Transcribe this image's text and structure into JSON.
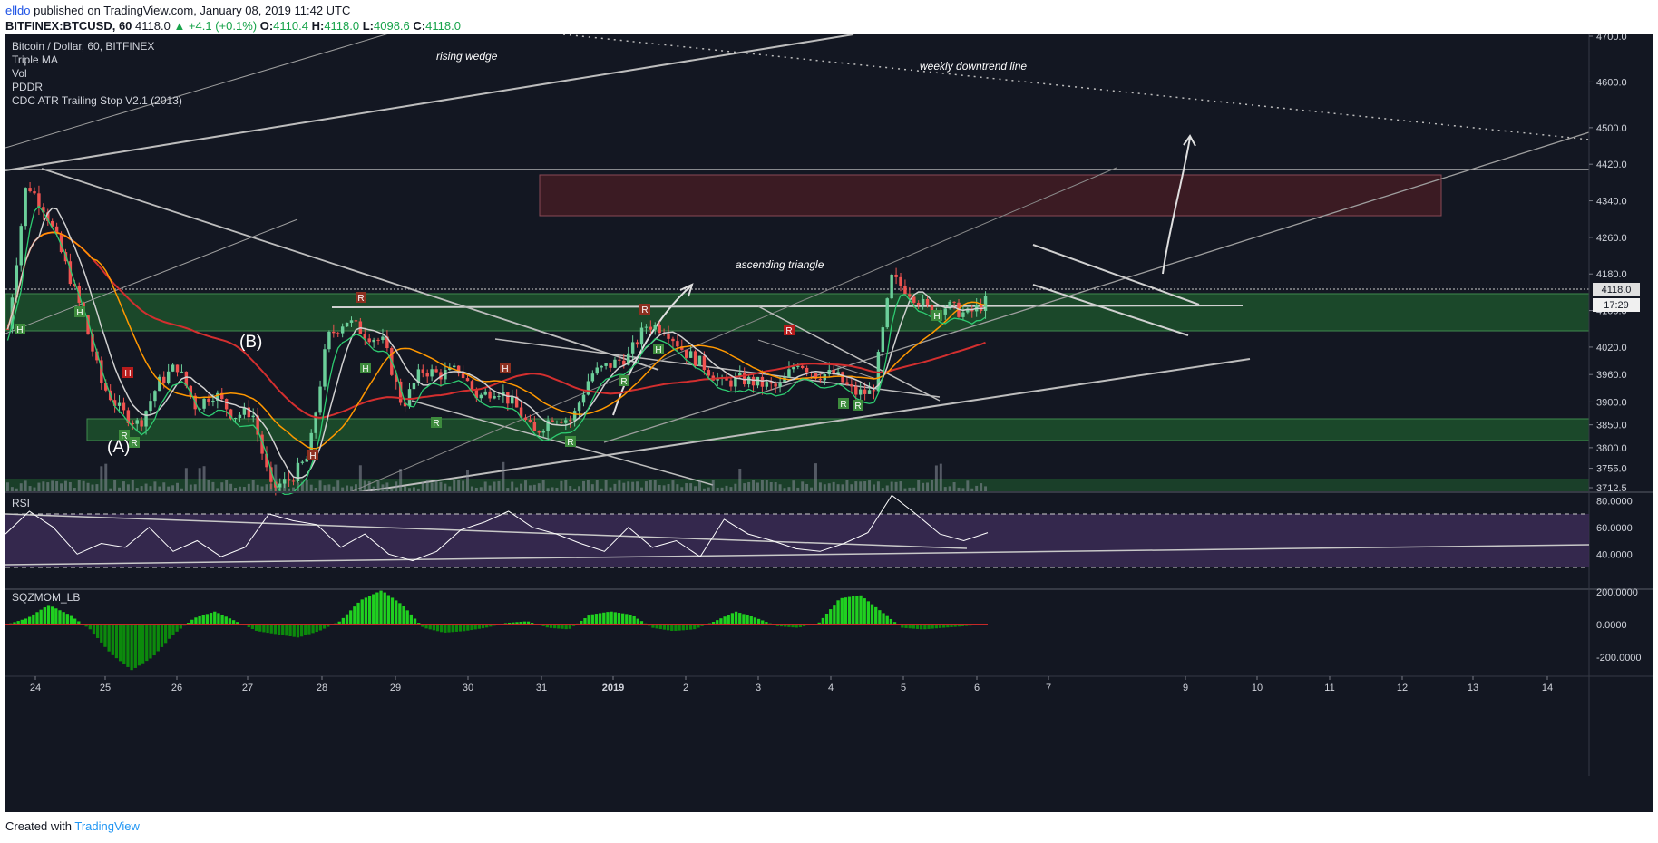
{
  "header": {
    "user": "elldo",
    "published": "published on TradingView.com, January 08, 2019 11:42 UTC",
    "symbol": "BITFINEX:BTCUSD, 60",
    "last": "4118.0",
    "change": "▲ +4.1 (+0.1%)",
    "o_label": "O:",
    "o": "4110.4",
    "h_label": "H:",
    "h": "4118.0",
    "l_label": "L:",
    "l": "4098.6",
    "c_label": "C:",
    "c": "4118.0"
  },
  "legend": {
    "title": "Bitcoin / Dollar, 60, BITFINEX",
    "ind1": "Triple MA",
    "ind2": "Vol",
    "ind3": "PDDR",
    "ind4": "CDC ATR Trailing Stop V2.1 (2013)"
  },
  "annotations": {
    "rising_wedge": "rising wedge",
    "weekly_downtrend": "weekly downtrend line",
    "ascending_triangle": "ascending triangle",
    "wave_a": "(A)",
    "wave_b": "(B)"
  },
  "price_badge": "4118.0",
  "time_badge": "17:29",
  "rsi_title": "RSI",
  "sqz_title": "SQZMOM_LB",
  "footer": {
    "created": "Created with",
    "brand": "TradingView"
  },
  "colors": {
    "bg": "#131722",
    "up": "#6bcf9a",
    "down": "#ef5350",
    "zone_green": "#1f5a2e",
    "zone_red": "#4a1d24",
    "rsi_band": "#3b2b55",
    "text": "#d1d4dc"
  },
  "chart_data": [
    {
      "type": "candlestick",
      "title": "Bitcoin / Dollar, 60, BITFINEX",
      "x_ticks": [
        "24",
        "25",
        "26",
        "27",
        "28",
        "29",
        "30",
        "31",
        "2019",
        "2",
        "3",
        "4",
        "5",
        "6",
        "7",
        "9",
        "10",
        "11",
        "12",
        "13",
        "14"
      ],
      "y_ticks": [
        3712.5,
        3755,
        3800,
        3850,
        3900,
        3960,
        4020,
        4100,
        4180,
        4260,
        4340,
        4420,
        4500,
        4600,
        4700
      ],
      "ylim": [
        3700,
        4700
      ],
      "close_path": [
        4060,
        4380,
        4320,
        4210,
        4090,
        3940,
        3880,
        3850,
        3940,
        3980,
        3890,
        3920,
        3870,
        3880,
        3710,
        3730,
        3780,
        4040,
        4080,
        4050,
        4030,
        3890,
        3970,
        3960,
        3970,
        3910,
        3930,
        3890,
        3830,
        3870,
        3860,
        3960,
        3980,
        4000,
        4070,
        4060,
        4010,
        3980,
        3940,
        3950,
        3940,
        3930,
        3990,
        3960,
        3960,
        3920,
        3920,
        4170,
        4140,
        4100,
        4110,
        4090,
        4118
      ],
      "current_price": 4118.0,
      "zones": [
        {
          "kind": "support",
          "range": [
            4036,
            4110
          ]
        },
        {
          "kind": "support",
          "range": [
            3810,
            3848
          ]
        },
        {
          "kind": "resistance",
          "range": [
            4350,
            4430
          ]
        }
      ],
      "horizontal_level": 4380
    },
    {
      "type": "line",
      "title": "RSI",
      "y_ticks": [
        40.0,
        60.0,
        80.0
      ],
      "bands": [
        30,
        70
      ],
      "values": [
        55,
        72,
        60,
        40,
        48,
        45,
        60,
        42,
        50,
        38,
        45,
        70,
        65,
        62,
        45,
        55,
        40,
        35,
        42,
        58,
        64,
        72,
        60,
        55,
        48,
        42,
        60,
        45,
        50,
        38,
        66,
        55,
        50,
        44,
        42,
        48,
        56,
        84,
        70,
        55,
        50,
        56
      ]
    },
    {
      "type": "bar",
      "title": "SQZMOM_LB",
      "y_ticks": [
        -200.0,
        0.0,
        200.0
      ],
      "values": [
        0,
        40,
        120,
        60,
        -30,
        -180,
        -280,
        -200,
        -60,
        40,
        80,
        20,
        -40,
        -60,
        -80,
        -40,
        20,
        150,
        210,
        120,
        -20,
        -50,
        -40,
        -20,
        10,
        20,
        -20,
        -30,
        60,
        80,
        60,
        -20,
        -40,
        -30,
        20,
        80,
        40,
        -10,
        -20,
        10,
        160,
        180,
        80,
        -20,
        -30,
        -20,
        -10,
        0
      ]
    }
  ]
}
